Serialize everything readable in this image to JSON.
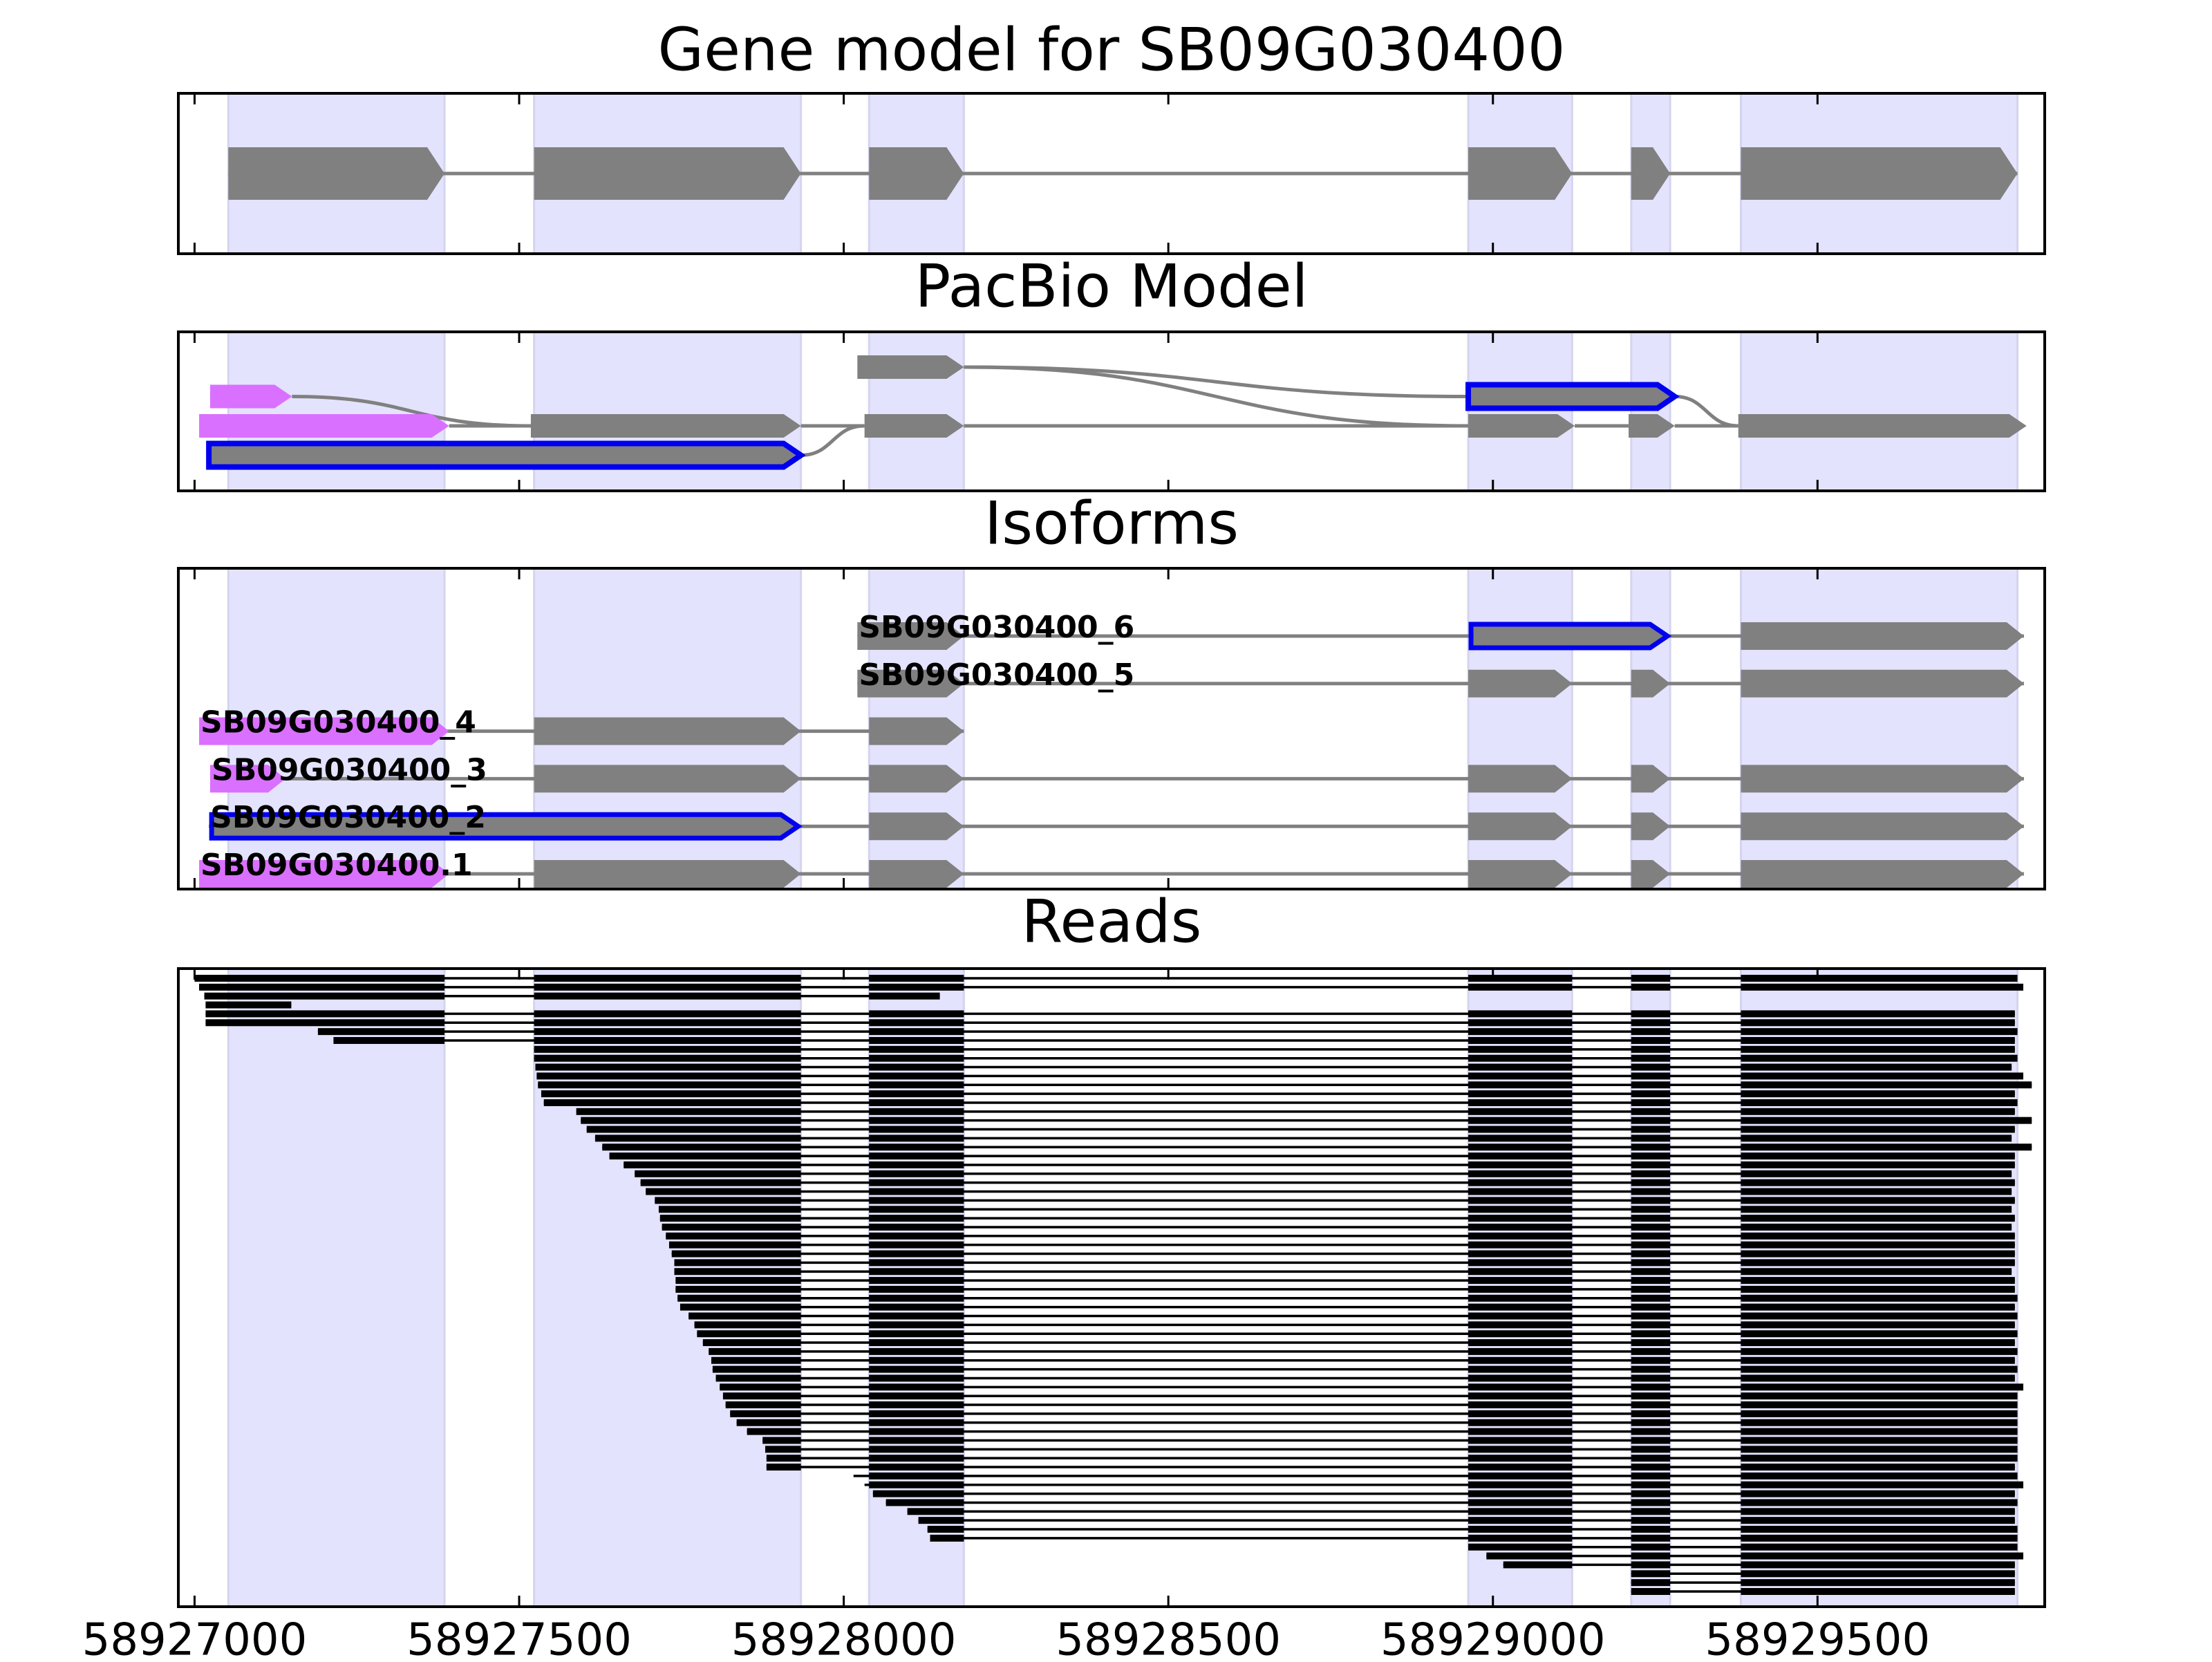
{
  "chart_data": [
    {
      "type": "gene",
      "title": "Gene model for SB09G030400",
      "xlim": [
        58926975,
        58929850
      ],
      "xticks": [
        58927000,
        58927500,
        58928000,
        58928500,
        58929000,
        58929500
      ],
      "color": "#808080",
      "region_color": "#e3e3fd",
      "exons": [
        [
          58927052,
          58927385
        ],
        [
          58927523,
          58927934
        ],
        [
          58928039,
          58928185
        ],
        [
          58928962,
          58929122
        ],
        [
          58929213,
          58929273
        ],
        [
          58929382,
          58929808
        ]
      ]
    },
    {
      "type": "graph",
      "title": "PacBio Model",
      "xlim": [
        58926975,
        58929850
      ],
      "xticks": [
        58927000,
        58927500,
        58928000,
        58928500,
        58929000,
        58929500
      ],
      "color": "#808080",
      "outline_color": "#0000ee",
      "lanes": [
        [
          {
            "start": 58928021,
            "end": 58928185,
            "color": "#808080"
          }
        ],
        [
          {
            "start": 58927024,
            "end": 58927150,
            "color": "#da70ff"
          },
          {
            "start": 58928962,
            "end": 58929280,
            "color": "#808080",
            "outlined": true
          }
        ],
        [
          {
            "start": 58927007,
            "end": 58927392,
            "color": "#da70ff"
          },
          {
            "start": 58927518,
            "end": 58927934,
            "color": "#808080"
          },
          {
            "start": 58928032,
            "end": 58928185,
            "color": "#808080"
          },
          {
            "start": 58928962,
            "end": 58929126,
            "color": "#808080"
          },
          {
            "start": 58929209,
            "end": 58929280,
            "color": "#808080"
          },
          {
            "start": 58929378,
            "end": 58929822,
            "color": "#808080"
          }
        ],
        [
          {
            "start": 58927022,
            "end": 58927934,
            "color": "#808080",
            "outlined": true
          }
        ]
      ]
    },
    {
      "type": "isoforms",
      "title": "Isoforms",
      "xlim": [
        58926975,
        58929850
      ],
      "xticks": [
        58927000,
        58927500,
        58928000,
        58928500,
        58929000,
        58929500
      ],
      "color": "#808080",
      "outline_color": "#0000ee",
      "first_exon_color": "#da70ff",
      "isoforms": [
        {
          "name": "SB09G030400_6",
          "exons": [
            [
              58928021,
              58928185
            ],
            [
              58928962,
              58929273
            ],
            [
              58929382,
              58929818
            ]
          ],
          "outlined_exon": 1
        },
        {
          "name": "SB09G030400_5",
          "exons": [
            [
              58928021,
              58928185
            ],
            [
              58928962,
              58929122
            ],
            [
              58929213,
              58929273
            ],
            [
              58929382,
              58929818
            ]
          ]
        },
        {
          "name": "SB09G030400_4",
          "exons": [
            [
              58927007,
              58927392
            ],
            [
              58927523,
              58927934
            ],
            [
              58928039,
              58928185
            ]
          ],
          "colored_first": true
        },
        {
          "name": "SB09G030400_3",
          "exons": [
            [
              58927024,
              58927140
            ],
            [
              58927523,
              58927934
            ],
            [
              58928039,
              58928185
            ],
            [
              58928962,
              58929122
            ],
            [
              58929213,
              58929273
            ],
            [
              58929382,
              58929818
            ]
          ],
          "colored_first": true
        },
        {
          "name": "SB09G030400_2",
          "exons": [
            [
              58927022,
              58927934
            ],
            [
              58928039,
              58928185
            ],
            [
              58928962,
              58929122
            ],
            [
              58929213,
              58929273
            ],
            [
              58929382,
              58929818
            ]
          ],
          "outlined_exon": 0
        },
        {
          "name": "SB09G030400.1",
          "exons": [
            [
              58927007,
              58927392
            ],
            [
              58927523,
              58927934
            ],
            [
              58928039,
              58928185
            ],
            [
              58928962,
              58929122
            ],
            [
              58929213,
              58929273
            ],
            [
              58929382,
              58929818
            ]
          ],
          "colored_first": true
        }
      ]
    },
    {
      "type": "reads",
      "title": "Reads",
      "xlim": [
        58926975,
        58929850
      ],
      "xticks": [
        58927000,
        58927500,
        58928000,
        58928500,
        58929000,
        58929500
      ],
      "color": "#000000",
      "reads": [
        [
          58927000,
          58929808
        ],
        [
          58927007,
          58929817
        ],
        [
          58927015,
          58928148
        ],
        [
          58927017,
          58927149
        ],
        [
          58927017,
          58929804
        ],
        [
          58927017,
          58929804
        ],
        [
          58927190,
          58929808
        ],
        [
          58927214,
          58929804
        ],
        [
          58927523,
          58929804
        ],
        [
          58927523,
          58929808
        ],
        [
          58927525,
          58929799
        ],
        [
          58927527,
          58929817
        ],
        [
          58927529,
          58929830
        ],
        [
          58927534,
          58929804
        ],
        [
          58927538,
          58929808
        ],
        [
          58927588,
          58929804
        ],
        [
          58927595,
          58929830
        ],
        [
          58927604,
          58929804
        ],
        [
          58927617,
          58929799
        ],
        [
          58927628,
          58929830
        ],
        [
          58927639,
          58929804
        ],
        [
          58927661,
          58929804
        ],
        [
          58927678,
          58929799
        ],
        [
          58927687,
          58929804
        ],
        [
          58927695,
          58929799
        ],
        [
          58927709,
          58929804
        ],
        [
          58927715,
          58929799
        ],
        [
          58927717,
          58929804
        ],
        [
          58927720,
          58929799
        ],
        [
          58927726,
          58929804
        ],
        [
          58927731,
          58929804
        ],
        [
          58927735,
          58929804
        ],
        [
          58927739,
          58929804
        ],
        [
          58927739,
          58929799
        ],
        [
          58927741,
          58929804
        ],
        [
          58927741,
          58929804
        ],
        [
          58927744,
          58929808
        ],
        [
          58927748,
          58929804
        ],
        [
          58927761,
          58929808
        ],
        [
          58927770,
          58929804
        ],
        [
          58927774,
          58929808
        ],
        [
          58927783,
          58929804
        ],
        [
          58927792,
          58929808
        ],
        [
          58927796,
          58929804
        ],
        [
          58927798,
          58929808
        ],
        [
          58927803,
          58929804
        ],
        [
          58927809,
          58929817
        ],
        [
          58927814,
          58929808
        ],
        [
          58927818,
          58929808
        ],
        [
          58927825,
          58929808
        ],
        [
          58927835,
          58929808
        ],
        [
          58927851,
          58929808
        ],
        [
          58927875,
          58929808
        ],
        [
          58927879,
          58929808
        ],
        [
          58927881,
          58929808
        ],
        [
          58927881,
          58929804
        ],
        [
          58928015,
          58929808
        ],
        [
          58928032,
          58929817
        ],
        [
          58928045,
          58929804
        ],
        [
          58928065,
          58929808
        ],
        [
          58928098,
          58929804
        ],
        [
          58928115,
          58929804
        ],
        [
          58928129,
          58929808
        ],
        [
          58928133,
          58929808
        ],
        [
          58928962,
          58929808
        ],
        [
          58928990,
          58929817
        ],
        [
          58929016,
          58929804
        ],
        [
          58929213,
          58929804
        ],
        [
          58929213,
          58929804
        ],
        [
          58929213,
          58929804
        ]
      ]
    }
  ]
}
